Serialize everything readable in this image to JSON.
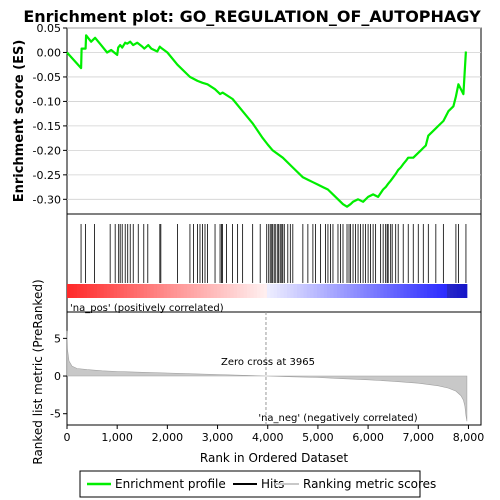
{
  "title": "Enrichment plot: GO_REGULATION_OF_AUTOPHAGY",
  "colors": {
    "enrichment": "#00ee00",
    "hits": "#000000",
    "ranking": "#c8c8c8",
    "pos_label": "#ff0000",
    "neg_label": "#0000ff",
    "grid": "#d0d0d0"
  },
  "chart_data": [
    {
      "type": "line",
      "name": "enrichment-profile",
      "ylabel": "Enrichment score (ES)",
      "xlim": [
        0,
        8250
      ],
      "ylim": [
        -0.33,
        0.05
      ],
      "yticks": [
        0.05,
        0.0,
        -0.05,
        -0.1,
        -0.15,
        -0.2,
        -0.25,
        -0.3
      ],
      "ytick_labels": [
        "0.05",
        "0.00",
        "-0.05",
        "-0.10",
        "-0.15",
        "-0.20",
        "-0.25",
        "-0.30"
      ],
      "grid": true,
      "x": [
        0,
        280,
        290,
        370,
        380,
        480,
        560,
        680,
        800,
        880,
        940,
        1000,
        1020,
        1060,
        1100,
        1160,
        1200,
        1260,
        1320,
        1400,
        1500,
        1540,
        1620,
        1680,
        1800,
        1850,
        1870,
        2000,
        2200,
        2450,
        2600,
        2700,
        2800,
        2950,
        3050,
        3100,
        3300,
        3500,
        3700,
        3900,
        4000,
        4100,
        4300,
        4500,
        4700,
        4800,
        4900,
        5000,
        5100,
        5200,
        5300,
        5400,
        5500,
        5580,
        5650,
        5700,
        5800,
        5900,
        6000,
        6100,
        6200,
        6300,
        6350,
        6400,
        6450,
        6500,
        6550,
        6600,
        6650,
        6700,
        6750,
        6800,
        6900,
        7000,
        7050,
        7100,
        7150,
        7200,
        7300,
        7400,
        7500,
        7550,
        7600,
        7700,
        7750,
        7800,
        7900,
        7950
      ],
      "y": [
        0.0,
        -0.032,
        0.008,
        0.008,
        0.035,
        0.022,
        0.03,
        0.015,
        0.0,
        0.005,
        0.0,
        -0.005,
        0.01,
        0.015,
        0.01,
        0.02,
        0.018,
        0.022,
        0.015,
        0.02,
        0.012,
        0.008,
        0.015,
        0.008,
        0.002,
        0.012,
        0.01,
        0.0,
        -0.025,
        -0.05,
        -0.058,
        -0.062,
        -0.065,
        -0.075,
        -0.085,
        -0.082,
        -0.095,
        -0.12,
        -0.145,
        -0.175,
        -0.188,
        -0.2,
        -0.215,
        -0.235,
        -0.255,
        -0.26,
        -0.265,
        -0.27,
        -0.275,
        -0.28,
        -0.29,
        -0.3,
        -0.31,
        -0.315,
        -0.31,
        -0.305,
        -0.3,
        -0.305,
        -0.295,
        -0.29,
        -0.295,
        -0.28,
        -0.275,
        -0.268,
        -0.262,
        -0.255,
        -0.248,
        -0.24,
        -0.235,
        -0.228,
        -0.222,
        -0.215,
        -0.215,
        -0.205,
        -0.2,
        -0.195,
        -0.19,
        -0.17,
        -0.16,
        -0.15,
        -0.14,
        -0.13,
        -0.12,
        -0.11,
        -0.09,
        -0.065,
        -0.085,
        0.002
      ]
    },
    {
      "type": "scatter",
      "name": "hits",
      "xlim": [
        0,
        8250
      ],
      "hit_ranks": [
        280,
        370,
        550,
        860,
        960,
        1030,
        1060,
        1100,
        1160,
        1210,
        1260,
        1320,
        1420,
        1530,
        1610,
        1850,
        1870,
        2200,
        2450,
        2520,
        2600,
        2650,
        2700,
        2750,
        2800,
        2950,
        3050,
        3080,
        3100,
        3180,
        3300,
        3400,
        3500,
        3700,
        3850,
        3980,
        4020,
        4050,
        4080,
        4100,
        4130,
        4160,
        4200,
        4220,
        4250,
        4280,
        4300,
        4330,
        4400,
        4450,
        4500,
        4700,
        4800,
        4900,
        4950,
        5050,
        5150,
        5200,
        5250,
        5300,
        5400,
        5450,
        5500,
        5580,
        5620,
        5650,
        5700,
        5750,
        5800,
        5850,
        5900,
        5950,
        6000,
        6050,
        6100,
        6150,
        6250,
        6300,
        6350,
        6380,
        6400,
        6450,
        6480,
        6550,
        6600,
        6700,
        6800,
        6900,
        7000,
        7100,
        7200,
        7350,
        7500,
        7750,
        7800,
        7950
      ]
    },
    {
      "type": "area",
      "name": "ranking-metric",
      "xlabel": "Rank in Ordered Dataset",
      "ylabel": "Ranked list metric (PreRanked)",
      "xlim": [
        0,
        8250
      ],
      "ylim": [
        -6.5,
        8.5
      ],
      "yticks": [
        5,
        0,
        -5
      ],
      "ytick_labels": [
        "5",
        "0",
        "-5"
      ],
      "xticks": [
        0,
        1000,
        2000,
        3000,
        4000,
        5000,
        6000,
        7000,
        8000
      ],
      "xtick_labels": [
        "0",
        "1,000",
        "2,000",
        "3,000",
        "4,000",
        "5,000",
        "6,000",
        "7,000",
        "8,000"
      ],
      "x": [
        0,
        10,
        40,
        100,
        200,
        400,
        700,
        1000,
        1500,
        2000,
        2500,
        3000,
        3500,
        3965,
        4500,
        5000,
        5500,
        6000,
        6500,
        7000,
        7400,
        7600,
        7750,
        7850,
        7900,
        7930,
        7950,
        7970
      ],
      "y": [
        6.0,
        3.5,
        2.0,
        1.3,
        1.0,
        0.85,
        0.7,
        0.6,
        0.5,
        0.4,
        0.3,
        0.2,
        0.1,
        0.0,
        -0.1,
        -0.2,
        -0.35,
        -0.5,
        -0.7,
        -0.95,
        -1.3,
        -1.6,
        -2.0,
        -2.6,
        -3.2,
        -4.0,
        -5.2,
        -6.0
      ],
      "zero_cross_rank": 3965,
      "annotations": {
        "zero_cross": "Zero cross at 3965",
        "positive": "'na_pos' (positively correlated)",
        "negative": "'na_neg' (negatively correlated)"
      }
    }
  ],
  "legend": {
    "items": [
      {
        "label": "Enrichment profile",
        "color": "#00ee00"
      },
      {
        "label": "Hits",
        "color": "#000000"
      },
      {
        "label": "Ranking metric scores",
        "color": "#c8c8c8"
      }
    ]
  }
}
